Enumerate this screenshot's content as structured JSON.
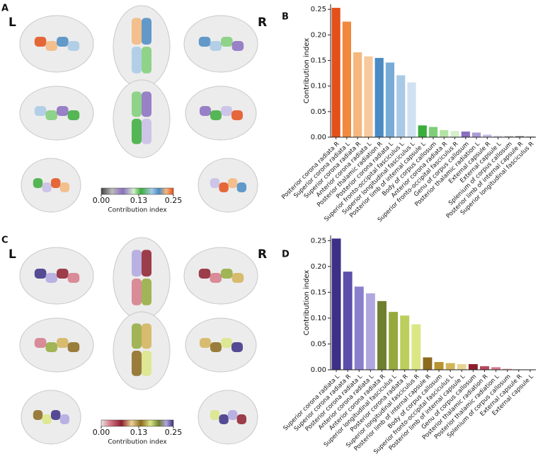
{
  "brain_panels": [
    {
      "panel": "A",
      "left": "L",
      "right": "R",
      "colorbar_label": "Contribution index",
      "colorbar_ticks": [
        {
          "value": 0,
          "label": "0.00"
        },
        0.13,
        0.25
      ]
    },
    {
      "panel": "C",
      "left": "L",
      "right": "R",
      "colorbar_label": "Contribution index",
      "colorbar_ticks": [
        {
          "value": 0,
          "label": "0.00"
        },
        0.13,
        0.25
      ]
    }
  ],
  "chart_data": [
    {
      "type": "bar",
      "panel": "B",
      "y_label": "Contribution index",
      "categories": [
        "Posterior corona radiata R",
        "Superior corona radiata L",
        "Superior corona radiata R",
        "Anterior corona radiata L",
        "Posterior thalamic radiation R",
        "Posterior corona radiata L",
        "Superior fronto-occipital fasciculus L",
        "Superior longitudinal fasciculus L",
        "Posterior limb of internal capsule L",
        "Body of corpus callosum",
        "Anterior corona radiata R",
        "Superior fronto-occipital fasciculus R",
        "Genu of corpus callosum",
        "Posterior thalamic radiation L",
        "External capsule R",
        "External capsule L",
        "Splenium of corpus callosum",
        "Posterior limb of internal capsule R",
        "Superior longitudinal fasciculus R"
      ],
      "values": [
        0.253,
        0.226,
        0.166,
        0.158,
        0.155,
        0.146,
        0.121,
        0.107,
        0.023,
        0.02,
        0.014,
        0.012,
        0.011,
        0.009,
        0.005,
        0.003,
        0.002,
        0.002,
        0.001
      ],
      "colors": [
        "#e4501a",
        "#ef8a3f",
        "#f5b77c",
        "#f8c99c",
        "#4a8bc3",
        "#78acd7",
        "#a8cae6",
        "#cfe1f2",
        "#3aad3a",
        "#7ecf78",
        "#b5e3a6",
        "#d6efcc",
        "#8a6fc0",
        "#ab9bd6",
        "#c8bee6",
        "#dedaee",
        "#aaaaaa",
        "#777777",
        "#444444"
      ],
      "ylim": [
        0,
        0.26
      ],
      "yticks": [
        {
          "value": 0,
          "label": "0.00"
        },
        0.05,
        {
          "value": 0.1,
          "label": "0.10"
        },
        0.15,
        {
          "value": 0.2,
          "label": "0.20"
        },
        0.25
      ]
    },
    {
      "type": "bar",
      "panel": "D",
      "y_label": "Contribution index",
      "categories": [
        "Superior corona radiata L",
        "Superior corona radiata R",
        "Posterior corona radiata L",
        "Anterior corona radiata L",
        "Anterior corona radiata R",
        "Superior longitudinal fasciculus L",
        "Posterior corona radiata R",
        "Superior longitudinal fasciculus R",
        "Posterior limb of internal capsule R",
        "Body of corpus callosum",
        "Superior fronto-occipital fasciculus L",
        "Posterior limb of internal capsule L",
        "Genu of corpus callosum",
        "Posterior thalamic radiation R",
        "Posterior thalamic radiation L",
        "Splenium of corpus callosum",
        "External capsule R",
        "External capsule L"
      ],
      "values": [
        0.254,
        0.19,
        0.161,
        0.148,
        0.133,
        0.112,
        0.105,
        0.088,
        0.024,
        0.015,
        0.013,
        0.011,
        0.011,
        0.007,
        0.005,
        0.002,
        0.001,
        0.001
      ],
      "colors": [
        "#3b2f86",
        "#5b4fab",
        "#8a7fcc",
        "#b0a7e0",
        "#6e7f2e",
        "#94aa3c",
        "#bccf5c",
        "#dbe685",
        "#8c6a1e",
        "#b8932e",
        "#d4b45a",
        "#e8d495",
        "#8e1e2e",
        "#b84a5a",
        "#d67a8a",
        "#e8a8b5",
        "#c8c0dc",
        "#e6e6e6"
      ],
      "ylim": [
        0,
        0.26
      ],
      "yticks": [
        {
          "value": 0,
          "label": "0.00"
        },
        0.05,
        {
          "value": 0.1,
          "label": "0.10"
        },
        0.15,
        {
          "value": 0.2,
          "label": "0.20"
        },
        0.25
      ]
    }
  ]
}
